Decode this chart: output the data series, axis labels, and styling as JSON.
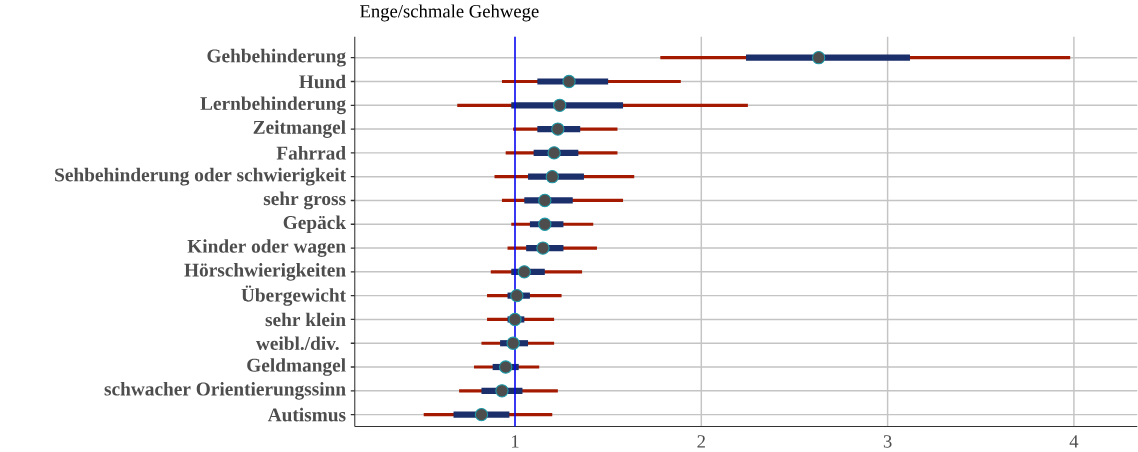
{
  "chart_data": {
    "type": "box",
    "orientation": "horizontal",
    "title": "Enge/schmale Gehwege",
    "categories": [
      "Gehbehinderung",
      "Hund",
      "Lernbehinderung",
      "Zeitmangel",
      "Fahrrad",
      "Sehbehinderung oder schwierigkeit",
      "sehr gross",
      "Gepäck",
      "Kinder oder wagen",
      "Hörschwierigkeiten",
      "Übergewicht",
      "sehr klein",
      "weibl./div. ",
      "Geldmangel",
      "schwacher Orientierungssinn",
      "Autismus"
    ],
    "series": [
      {
        "color": "#1b2f6b",
        "boxes": [
          {
            "low": 1.78,
            "q1": 2.24,
            "median": 2.63,
            "q3": 3.12,
            "high": 3.98
          },
          {
            "low": 0.93,
            "q1": 1.12,
            "median": 1.29,
            "q3": 1.5,
            "high": 1.89
          },
          {
            "low": 0.69,
            "q1": 0.98,
            "median": 1.24,
            "q3": 1.58,
            "high": 2.25
          },
          {
            "low": 0.99,
            "q1": 1.12,
            "median": 1.23,
            "q3": 1.35,
            "high": 1.55
          },
          {
            "low": 0.95,
            "q1": 1.1,
            "median": 1.21,
            "q3": 1.34,
            "high": 1.55
          },
          {
            "low": 0.89,
            "q1": 1.07,
            "median": 1.2,
            "q3": 1.37,
            "high": 1.64
          },
          {
            "low": 0.93,
            "q1": 1.05,
            "median": 1.16,
            "q3": 1.31,
            "high": 1.58
          },
          {
            "low": 0.98,
            "q1": 1.08,
            "median": 1.16,
            "q3": 1.26,
            "high": 1.42
          },
          {
            "low": 0.96,
            "q1": 1.06,
            "median": 1.15,
            "q3": 1.26,
            "high": 1.44
          },
          {
            "low": 0.87,
            "q1": 0.98,
            "median": 1.05,
            "q3": 1.16,
            "high": 1.36
          },
          {
            "low": 0.85,
            "q1": 0.96,
            "median": 1.01,
            "q3": 1.08,
            "high": 1.25
          },
          {
            "low": 0.85,
            "q1": 0.96,
            "median": 1.0,
            "q3": 1.05,
            "high": 1.21
          },
          {
            "low": 0.82,
            "q1": 0.92,
            "median": 0.99,
            "q3": 1.07,
            "high": 1.21
          },
          {
            "low": 0.78,
            "q1": 0.88,
            "median": 0.95,
            "q3": 1.02,
            "high": 1.13
          },
          {
            "low": 0.7,
            "q1": 0.82,
            "median": 0.93,
            "q3": 1.04,
            "high": 1.23
          },
          {
            "low": 0.51,
            "q1": 0.67,
            "median": 0.82,
            "q3": 0.97,
            "high": 1.2
          }
        ]
      }
    ],
    "xlim": [
      0.14,
      4.34
    ],
    "xticks": [
      1,
      2,
      3,
      4
    ],
    "ref_lines": [
      {
        "axis": "x",
        "value": 1,
        "color": "#0000ff"
      }
    ],
    "grid": true
  }
}
